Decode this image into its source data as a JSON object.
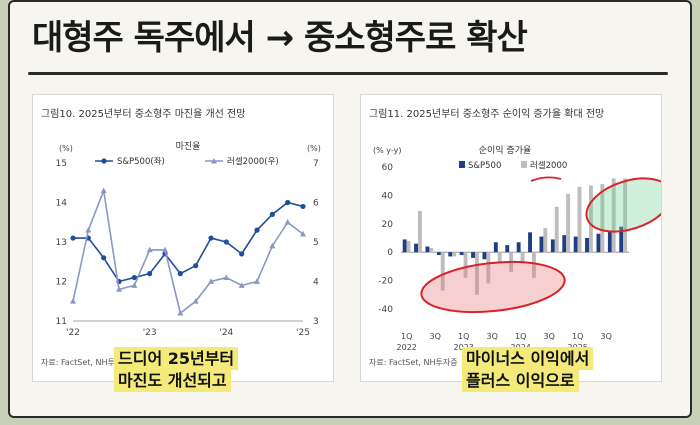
{
  "page": {
    "title": "대형주 독주에서 → 중소형주로 확산"
  },
  "captions": {
    "left": [
      "드디어 25년부터",
      "마진도 개선되고"
    ],
    "right": [
      "마이너스 이익에서",
      "플러스 이익으로"
    ]
  },
  "chart_data": [
    {
      "type": "line",
      "panel_title": "그림10. 2025년부터 중소형주 마진율 개선 전망",
      "title": "마진율",
      "source": "자료: FactSet, NH투",
      "left_unit": "(%)",
      "right_unit": "(%)",
      "x_ticks": [
        "'22",
        "'23",
        "'24",
        "'25"
      ],
      "ylim_left": [
        11,
        15
      ],
      "yticks_left": [
        11,
        12,
        13,
        14,
        15
      ],
      "ylim_right": [
        3,
        7
      ],
      "yticks_right": [
        3,
        4,
        5,
        6,
        7
      ],
      "series": [
        {
          "name": "S&P500(좌)",
          "axis": "left",
          "color": "#1f4e9c",
          "marker": "circle",
          "values": [
            13.1,
            13.1,
            12.6,
            12.0,
            12.1,
            12.2,
            12.7,
            12.2,
            12.4,
            13.1,
            13.0,
            12.7,
            13.3,
            13.7,
            14.0,
            13.9
          ]
        },
        {
          "name": "러셀2000(우)",
          "axis": "right",
          "color": "#8a98c4",
          "marker": "triangle",
          "values": [
            3.5,
            5.3,
            6.3,
            3.8,
            3.9,
            4.8,
            4.8,
            3.2,
            3.5,
            4.0,
            4.1,
            3.9,
            4.0,
            4.9,
            5.5,
            5.2
          ]
        }
      ]
    },
    {
      "type": "bar",
      "panel_title": "그림11. 2025년부터 중소형주 순이익 증가율 확대 전망",
      "title": "순이익 증가율",
      "source": "자료: FactSet, NH투자증",
      "unit": "(% y-y)",
      "ylim": [
        -40,
        60
      ],
      "yticks": [
        -40,
        -20,
        0,
        20,
        40,
        60
      ],
      "x_ticks": [
        [
          "1Q",
          "2022"
        ],
        [
          "3Q",
          ""
        ],
        [
          "1Q",
          "2023"
        ],
        [
          "3Q",
          ""
        ],
        [
          "1Q",
          "2024"
        ],
        [
          "3Q",
          ""
        ],
        [
          "1Q",
          "2025"
        ],
        [
          "3Q",
          ""
        ]
      ],
      "series": [
        {
          "name": "S&P500",
          "color": "#1f3f85",
          "values": [
            9,
            6,
            4,
            -2,
            -3,
            -2,
            -4,
            -5,
            7,
            5,
            7,
            14,
            11,
            9,
            12,
            11,
            10,
            13,
            15,
            18
          ]
        },
        {
          "name": "러셀2000",
          "color": "#bdbdbd",
          "values": [
            8,
            29,
            3,
            -27,
            -3,
            -18,
            -30,
            -22,
            -8,
            -14,
            -8,
            -18,
            17,
            32,
            41,
            46,
            47,
            48,
            52,
            52
          ]
        }
      ]
    }
  ]
}
